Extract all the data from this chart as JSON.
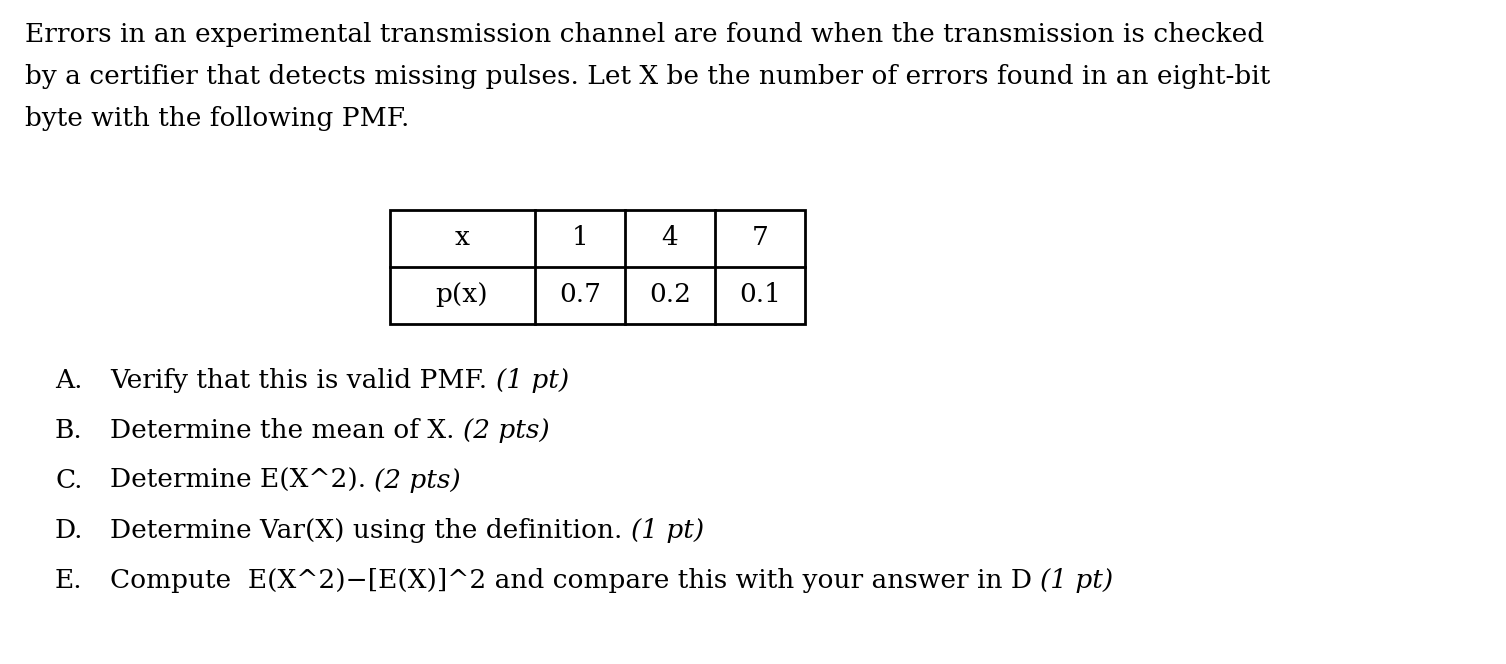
{
  "background_color": "#ffffff",
  "para_line1": "Errors in an experimental transmission channel are found when the transmission is checked",
  "para_line2": "by a certifier that detects missing pulses. Let X be the number of errors found in an eight-bit",
  "para_line3": "byte with the following PMF.",
  "table": {
    "col_headers": [
      "x",
      "1",
      "4",
      "7"
    ],
    "row_label": "p(x)",
    "row_values": [
      "0.7",
      "0.2",
      "0.1"
    ]
  },
  "questions": [
    {
      "letter": "A.",
      "text": "Verify that this is valid PMF. (1 pt)"
    },
    {
      "letter": "B.",
      "text": "Determine the mean of X. (2 pts)"
    },
    {
      "letter": "C.",
      "text": "Determine E(X^2). (2 pts)"
    },
    {
      "letter": "D.",
      "text": "Determine Var(X) using the definition. (1 pt)"
    },
    {
      "letter": "E.",
      "text": "Compute  E(X^2)−[E(X)]^2 and compare this with your answer in D (1 pt)"
    }
  ],
  "q_normal_parts": [
    "Verify that this is valid PMF. ",
    "Determine the mean of X. ",
    "Determine E(X^2). ",
    "Determine Var(X) using the definition. ",
    "Compute  E(X^2)−[E(X)]^2 and compare this with your answer in D "
  ],
  "q_italic_parts": [
    "(1 pt)",
    "(2 pts)",
    "(2 pts)",
    "(1 pt)",
    "(1 pt)"
  ],
  "font_family": "DejaVu Serif",
  "para_fontsize": 19,
  "table_fontsize": 19,
  "question_fontsize": 19,
  "text_color": "#000000"
}
